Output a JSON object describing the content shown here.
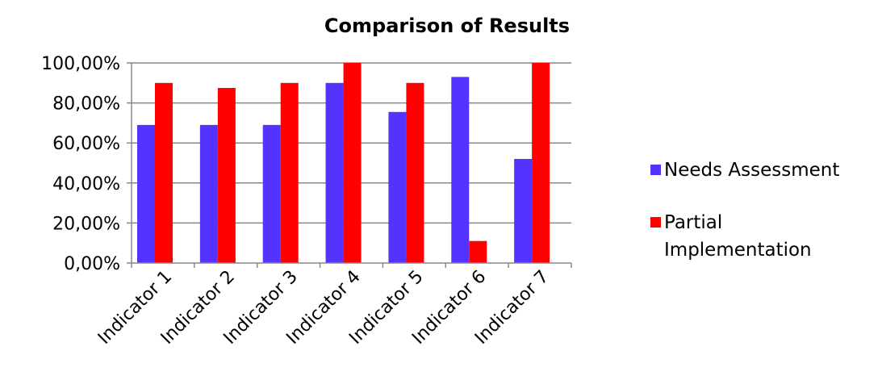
{
  "chart_data": {
    "type": "bar",
    "title": "Comparison of Results",
    "xlabel": "",
    "ylabel": "",
    "categories": [
      "Indicator 1",
      "Indicator 2",
      "Indicator 3",
      "Indicator 4",
      "Indicator 5",
      "Indicator 6",
      "Indicator 7"
    ],
    "series": [
      {
        "name": "Needs Assessment",
        "color": "#5533ff",
        "values": [
          69,
          69,
          69,
          90,
          75.5,
          93,
          52
        ]
      },
      {
        "name": "Partial Implementation",
        "name_lines": [
          "Partial",
          "Implementation"
        ],
        "color": "#ff0000",
        "values": [
          90,
          87.5,
          90,
          100,
          90,
          11,
          100
        ]
      }
    ],
    "ylim": [
      0,
      100
    ],
    "yticks": [
      0,
      20,
      40,
      60,
      80,
      100
    ],
    "ytick_labels": [
      "0,00%",
      "20,00%",
      "40,00%",
      "60,00%",
      "80,00%",
      "100,00%"
    ],
    "grid": true,
    "legend_position": "right"
  }
}
